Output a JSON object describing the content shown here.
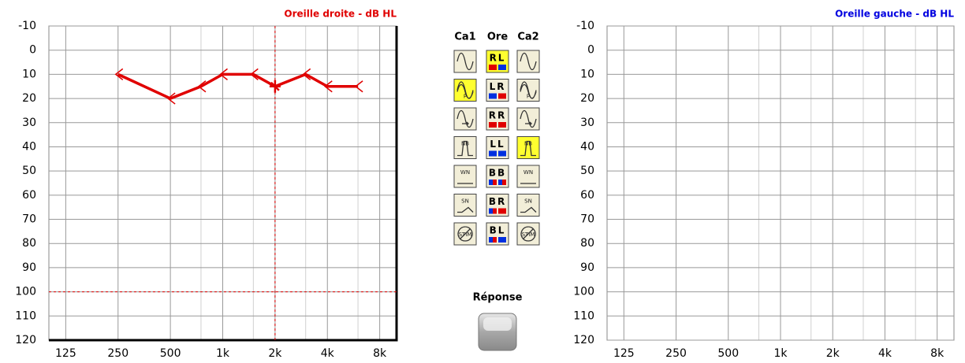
{
  "chart_data": [
    {
      "type": "line",
      "title": "Oreille droite - dB HL",
      "title_color": "#e00000",
      "selected": true,
      "xlog": true,
      "xlim": [
        100,
        10000
      ],
      "xticks": [
        125,
        250,
        500,
        {
          "value": 1000,
          "label": "1k"
        },
        {
          "value": 2000,
          "label": "2k"
        },
        {
          "value": 4000,
          "label": "4k"
        },
        {
          "value": 8000,
          "label": "8k"
        }
      ],
      "xminor": [
        750,
        1500,
        3000,
        6000
      ],
      "ylim": [
        -10,
        120
      ],
      "y_inverted": true,
      "yticks": [
        -10,
        0,
        10,
        20,
        30,
        40,
        50,
        60,
        70,
        80,
        90,
        100,
        110,
        120
      ],
      "x": [
        250,
        500,
        750,
        1000,
        1500,
        2000,
        3000,
        4000,
        6000
      ],
      "series": [
        {
          "color": "#e00000",
          "values": [
            10,
            20,
            15,
            10,
            10,
            15,
            10,
            15,
            15
          ]
        }
      ],
      "cursor": {
        "x": 2000,
        "y": 100,
        "color": "#e00000"
      }
    },
    {
      "type": "line",
      "title": "Oreille gauche - dB HL",
      "title_color": "#0000e0",
      "selected": false,
      "xlog": true,
      "xlim": [
        100,
        10000
      ],
      "xticks": [
        125,
        250,
        500,
        {
          "value": 1000,
          "label": "1k"
        },
        {
          "value": 2000,
          "label": "2k"
        },
        {
          "value": 4000,
          "label": "4k"
        },
        {
          "value": 8000,
          "label": "8k"
        }
      ],
      "xminor": [
        750,
        1500,
        3000,
        6000
      ],
      "ylim": [
        -10,
        120
      ],
      "y_inverted": true,
      "yticks": [
        -10,
        0,
        10,
        20,
        30,
        40,
        50,
        60,
        70,
        80,
        90,
        100,
        110,
        120
      ],
      "x": [],
      "series": []
    }
  ],
  "panel": {
    "headers": [
      "Ca1",
      "Ore",
      "Ca2"
    ],
    "rows": [
      {
        "ore": "RL",
        "highlight": "ore"
      },
      {
        "ore": "LR",
        "icon": "P",
        "highlight": "ca1"
      },
      {
        "ore": "RR"
      },
      {
        "ore": "LL",
        "icon": "NB",
        "highlight": "ca2"
      },
      {
        "ore": "BB",
        "icon": "WN"
      },
      {
        "ore": "BR",
        "icon": "SN"
      },
      {
        "ore": "BL",
        "icon": "STIM"
      }
    ],
    "response": "Réponse"
  }
}
